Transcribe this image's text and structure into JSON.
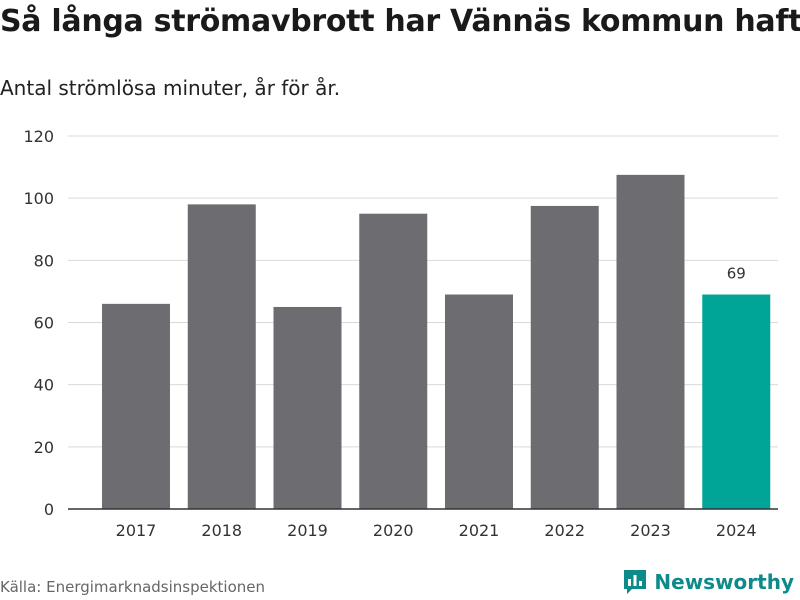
{
  "header": {
    "title": "Så långa strömavbrott har Vännäs kommun haft",
    "subtitle": "Antal strömlösa minuter, år för år."
  },
  "footer": {
    "source": "Källa: Energimarknadsinspektionen",
    "brand": "Newsworthy"
  },
  "colors": {
    "bar": "#6d6c71",
    "highlight": "#00a597",
    "grid": "#d9d9d9",
    "axis": "#333333",
    "brand": "#0e8a8a"
  },
  "chart_data": {
    "type": "bar",
    "title": "Så långa strömavbrott har Vännäs kommun haft",
    "subtitle": "Antal strömlösa minuter, år för år.",
    "categories": [
      "2017",
      "2018",
      "2019",
      "2020",
      "2021",
      "2022",
      "2023",
      "2024"
    ],
    "values": [
      66,
      98,
      65,
      95,
      69,
      97.5,
      107.5,
      69
    ],
    "highlight_index": 7,
    "highlight_label": "69",
    "xlabel": "",
    "ylabel": "",
    "ylim": [
      0,
      120
    ],
    "yticks": [
      "0",
      "20",
      "40",
      "60",
      "80",
      "100",
      "120"
    ],
    "grid": true
  }
}
